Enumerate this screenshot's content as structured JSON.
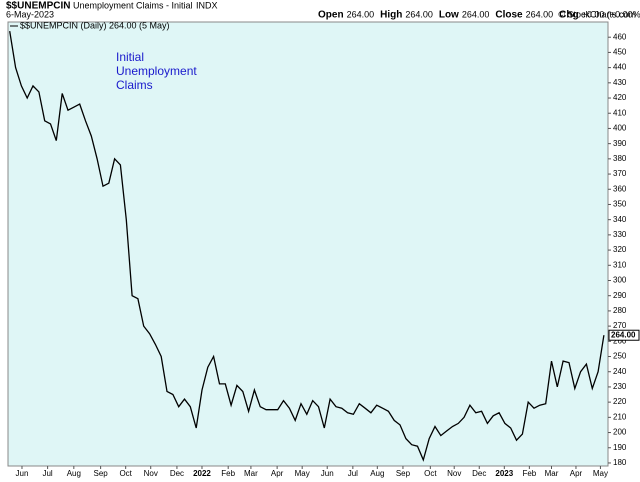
{
  "chart_data": {
    "type": "line",
    "symbol": "$$UNEMPCIN",
    "title": "Unemployment Claims - Initial",
    "exchange": "INDX",
    "date": "6-May-2023",
    "ohlc": [
      {
        "label": "Open",
        "value": "264.00"
      },
      {
        "label": "High",
        "value": "264.00"
      },
      {
        "label": "Low",
        "value": "264.00"
      },
      {
        "label": "Close",
        "value": "264.00"
      },
      {
        "label": "Chg",
        "value": "+0.00 (+0.00%)"
      }
    ],
    "credit": "© StockCharts.com",
    "legend": "$$UNEMPCIN (Daily) 264.00 (5 May)",
    "annotation": [
      "Initial",
      "Unemployment",
      "Claims"
    ],
    "last_value_label": "264.00",
    "color": "#000000",
    "background": "#dff6f6",
    "values": [
      464,
      440,
      428,
      420,
      428,
      424,
      405,
      403,
      392,
      423,
      412,
      414,
      416,
      405,
      395,
      380,
      362,
      364,
      380,
      376,
      340,
      290,
      288,
      270,
      265,
      258,
      250,
      227,
      225,
      217,
      222,
      217,
      203,
      228,
      243,
      250,
      232,
      232,
      218,
      231,
      227,
      214,
      228,
      217,
      215,
      215,
      215,
      221,
      216,
      208,
      219,
      212,
      221,
      217,
      203,
      222,
      217,
      216,
      213,
      212,
      219,
      216,
      213,
      218,
      216,
      214,
      208,
      205,
      196,
      192,
      191,
      182,
      196,
      204,
      198,
      201,
      204,
      206,
      210,
      218,
      213,
      214,
      206,
      211,
      213,
      206,
      203,
      195,
      199,
      220,
      216,
      218,
      219,
      247,
      230,
      247,
      246,
      229,
      240,
      245,
      229,
      240,
      264
    ],
    "xlim": [
      -0.3,
      102.7
    ],
    "xticks": [
      {
        "value": 2.1,
        "label": "Jun"
      },
      {
        "value": 6.5,
        "label": "Jul"
      },
      {
        "value": 11,
        "label": "Aug"
      },
      {
        "value": 15.6,
        "label": "Sep"
      },
      {
        "value": 19.9,
        "label": "Oct"
      },
      {
        "value": 24.2,
        "label": "Nov"
      },
      {
        "value": 28.7,
        "label": "Dec"
      },
      {
        "value": 33,
        "label": "2022"
      },
      {
        "value": 37.5,
        "label": "Feb"
      },
      {
        "value": 41.4,
        "label": "Mar"
      },
      {
        "value": 45.9,
        "label": "Apr"
      },
      {
        "value": 50.2,
        "label": "May"
      },
      {
        "value": 54.5,
        "label": "Jun"
      },
      {
        "value": 58.9,
        "label": "Jul"
      },
      {
        "value": 63.1,
        "label": "Aug"
      },
      {
        "value": 67.5,
        "label": "Sep"
      },
      {
        "value": 72.2,
        "label": "Oct"
      },
      {
        "value": 76.3,
        "label": "Nov"
      },
      {
        "value": 80.6,
        "label": "Dec"
      },
      {
        "value": 84.9,
        "label": "2023"
      },
      {
        "value": 89.2,
        "label": "Feb"
      },
      {
        "value": 93,
        "label": "Mar"
      },
      {
        "value": 97.2,
        "label": "Apr"
      },
      {
        "value": 101.4,
        "label": "May"
      }
    ],
    "ylim": [
      178,
      470
    ],
    "yticks": [
      180,
      190,
      200,
      210,
      220,
      230,
      240,
      250,
      260,
      270,
      280,
      290,
      300,
      310,
      320,
      330,
      340,
      350,
      360,
      370,
      380,
      390,
      400,
      410,
      420,
      430,
      440,
      450,
      460
    ]
  }
}
